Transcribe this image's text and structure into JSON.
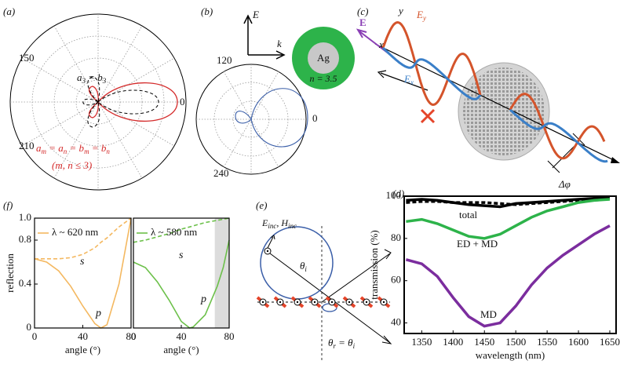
{
  "panel_a": {
    "label": "(a)",
    "angles": [
      "150",
      "0",
      "210"
    ],
    "note_top": [
      "a",
      "3",
      " = b",
      "3"
    ],
    "note_red": [
      "a",
      "m",
      " = a",
      "n",
      " = b",
      "m",
      " = b",
      "n"
    ],
    "note_red_cond": "(m, n ≤ 3)"
  },
  "panel_b": {
    "label": "(b)",
    "axis_up": "E",
    "axis_right": "k",
    "core": "Ag",
    "shell": "n = 3.5",
    "angles": [
      "120",
      "0",
      "240"
    ]
  },
  "panel_c": {
    "label": "(c)",
    "field": "E",
    "field_y": [
      "E",
      "y"
    ],
    "field_x": [
      "E",
      "x"
    ],
    "axis_y": "y",
    "axis_x": "x",
    "phase": "Δφ"
  },
  "panel_e": {
    "label": "(e)",
    "incident": [
      "E",
      "inc",
      ", H",
      "inc"
    ],
    "theta_i": [
      "θ",
      "i"
    ],
    "theta_r": [
      "θ",
      "r",
      " = θ",
      "i"
    ]
  },
  "panel_f": {
    "label": "(f)"
  },
  "panel_d": {
    "label": "(d)"
  },
  "chart_data": [
    {
      "type": "line",
      "legend": "λ ~ 620 nm",
      "y_label": "reflection",
      "x_label": "angle (°)",
      "x": [
        0,
        10,
        20,
        30,
        40,
        50,
        55,
        60,
        70,
        80
      ],
      "series": [
        {
          "name": "p",
          "color": "#f4b860",
          "dash": false,
          "values": [
            0.63,
            0.6,
            0.52,
            0.38,
            0.2,
            0.04,
            0.0,
            0.03,
            0.4,
            1.0
          ]
        },
        {
          "name": "s",
          "color": "#f4b860",
          "dash": true,
          "values": [
            0.63,
            0.63,
            0.63,
            0.64,
            0.67,
            0.73,
            0.78,
            0.82,
            0.92,
            1.0
          ]
        }
      ],
      "xlim": [
        0,
        80
      ],
      "ylim": [
        0,
        1
      ],
      "xticks": [
        0,
        40,
        80
      ],
      "yticks": [
        0,
        0.4,
        0.8,
        {
          "value": 1,
          "label": "1.0"
        }
      ]
    },
    {
      "type": "line",
      "legend": "λ ~ 580 nm",
      "x_label": "angle (°)",
      "x": [
        0,
        10,
        20,
        30,
        40,
        47,
        50,
        60,
        70,
        75,
        80
      ],
      "series": [
        {
          "name": "p",
          "color": "#6cc04a",
          "dash": false,
          "values": [
            0.6,
            0.55,
            0.42,
            0.25,
            0.06,
            0.0,
            0.01,
            0.12,
            0.38,
            0.55,
            0.8
          ]
        },
        {
          "name": "s",
          "color": "#6cc04a",
          "dash": true,
          "values": [
            0.78,
            0.8,
            0.83,
            0.86,
            0.9,
            0.92,
            0.93,
            0.96,
            0.98,
            0.99,
            1.0
          ]
        }
      ],
      "xlim": [
        0,
        80
      ],
      "ylim": [
        0,
        1
      ],
      "xticks": [
        0,
        40,
        80
      ],
      "shaded_range": [
        68,
        80
      ]
    },
    {
      "type": "line",
      "y_label": "transmission (%)",
      "x_label": "wavelength (nm)",
      "x": [
        1325,
        1350,
        1375,
        1400,
        1425,
        1450,
        1475,
        1500,
        1525,
        1550,
        1575,
        1600,
        1625,
        1650
      ],
      "series": [
        {
          "name": "total",
          "color": "#000000",
          "dash": false,
          "values": [
            98,
            98.5,
            98,
            97,
            96,
            95.5,
            95,
            96.5,
            97,
            97.5,
            98,
            98.5,
            99,
            99
          ]
        },
        {
          "color": "#000000",
          "dash": true,
          "values": [
            97,
            97.5,
            97.5,
            97,
            97,
            97,
            96.5,
            96,
            96.5,
            97,
            97.5,
            98,
            98.5,
            99
          ]
        },
        {
          "name": "ED + MD",
          "color": "#2db34a",
          "dash": false,
          "values": [
            88,
            89,
            87,
            84,
            81,
            80,
            82,
            86,
            90,
            93,
            95,
            97,
            98,
            98.5
          ]
        },
        {
          "name": "MD",
          "color": "#7b2d9e",
          "dash": false,
          "values": [
            70,
            68,
            62,
            52,
            43,
            38.5,
            40,
            48,
            58,
            66,
            72,
            77,
            82,
            86
          ]
        }
      ],
      "xlim": [
        1322,
        1660
      ],
      "ylim": [
        35,
        100
      ],
      "xticks": [
        1350,
        1400,
        1450,
        1500,
        1550,
        1600,
        1650
      ],
      "yticks": [
        40,
        60,
        80,
        100
      ]
    }
  ]
}
